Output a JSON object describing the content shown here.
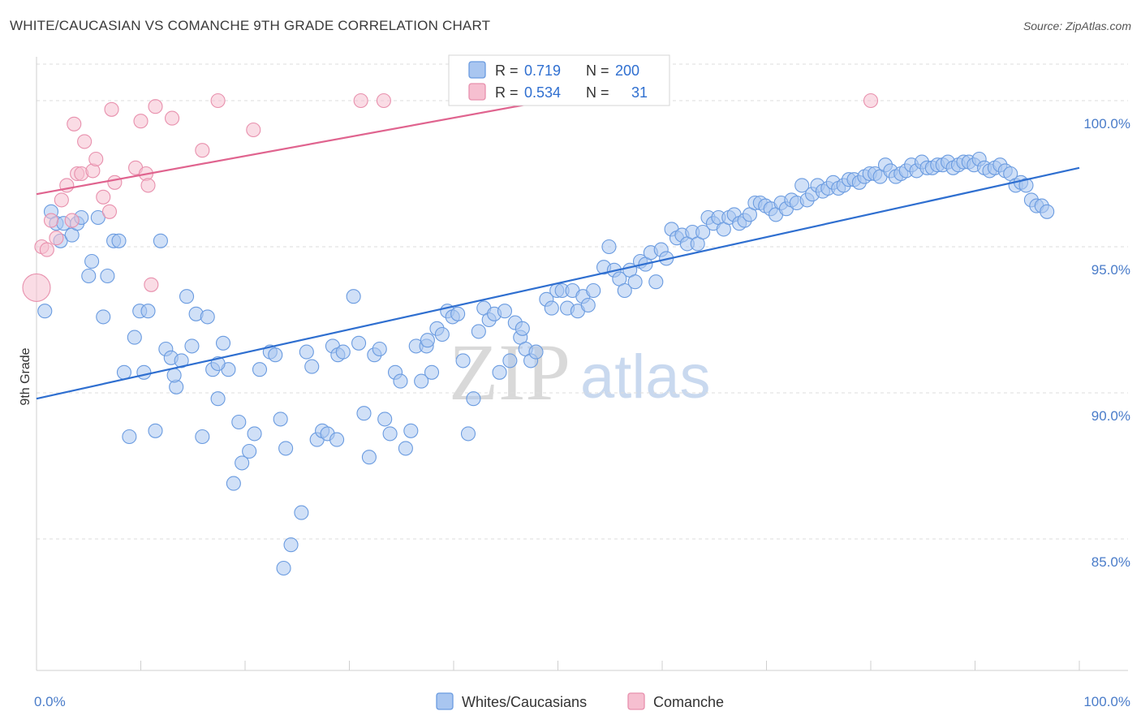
{
  "title": "WHITE/CAUCASIAN VS COMANCHE 9TH GRADE CORRELATION CHART",
  "source": "Source: ZipAtlas.com",
  "watermark": {
    "zip": "ZIP",
    "atlas": "atlas"
  },
  "colors": {
    "blue_fill": "#a9c6f0",
    "blue_stroke": "#6a9be0",
    "blue_line": "#2f6fd0",
    "pink_fill": "#f6bfd0",
    "pink_stroke": "#e890ad",
    "pink_line": "#e0648f",
    "value_text": "#2f6fd0",
    "grid": "#dddddd"
  },
  "legend": {
    "row1": {
      "r_label": "R =",
      "r_value": "0.719",
      "n_label": "N =",
      "n_value": "200"
    },
    "row2": {
      "r_label": "R =",
      "r_value": "0.534",
      "n_label": "N =",
      "n_value": "31"
    }
  },
  "bottom_legend": {
    "blue": "Whites/Caucasians",
    "pink": "Comanche"
  },
  "chart_data": {
    "type": "scatter",
    "title": "WHITE/CAUCASIAN VS COMANCHE 9TH GRADE CORRELATION CHART",
    "xlabel": "",
    "ylabel": "9th Grade",
    "xlim": [
      0,
      100
    ],
    "ylim": [
      80.5,
      101.5
    ],
    "x_tick_labels": [
      "0.0%",
      "100.0%"
    ],
    "y_ticks": [
      85,
      90,
      95,
      100
    ],
    "y_tick_labels": [
      "85.0%",
      "90.0%",
      "95.0%",
      "100.0%"
    ],
    "grid": "horizontal dashed",
    "legend_position": "top-center",
    "series": [
      {
        "name": "Whites/Caucasians",
        "color": "#a9c6f0",
        "trend": {
          "x": [
            0,
            100
          ],
          "y": [
            89.8,
            97.7
          ]
        },
        "points": [
          [
            0.8,
            92.8
          ],
          [
            1.4,
            96.2
          ],
          [
            1.9,
            95.8
          ],
          [
            2.3,
            95.2
          ],
          [
            2.6,
            95.8
          ],
          [
            3.4,
            95.4
          ],
          [
            3.9,
            95.8
          ],
          [
            4.3,
            96.0
          ],
          [
            5.0,
            94.0
          ],
          [
            5.3,
            94.5
          ],
          [
            5.9,
            96.0
          ],
          [
            6.4,
            92.6
          ],
          [
            6.8,
            94.0
          ],
          [
            7.4,
            95.2
          ],
          [
            7.9,
            95.2
          ],
          [
            8.4,
            90.7
          ],
          [
            8.9,
            88.5
          ],
          [
            9.4,
            91.9
          ],
          [
            9.9,
            92.8
          ],
          [
            10.3,
            90.7
          ],
          [
            10.7,
            92.8
          ],
          [
            11.4,
            88.7
          ],
          [
            11.9,
            95.2
          ],
          [
            12.4,
            91.5
          ],
          [
            12.9,
            91.2
          ],
          [
            13.4,
            90.2
          ],
          [
            13.9,
            91.1
          ],
          [
            14.4,
            93.3
          ],
          [
            14.9,
            91.6
          ],
          [
            15.3,
            92.7
          ],
          [
            15.9,
            88.5
          ],
          [
            16.4,
            92.6
          ],
          [
            16.9,
            90.8
          ],
          [
            17.4,
            89.8
          ],
          [
            17.9,
            91.7
          ],
          [
            18.4,
            90.8
          ],
          [
            18.9,
            86.9
          ],
          [
            19.4,
            89.0
          ],
          [
            19.7,
            87.6
          ],
          [
            20.4,
            88.0
          ],
          [
            20.9,
            88.6
          ],
          [
            21.4,
            90.8
          ],
          [
            22.4,
            91.4
          ],
          [
            22.9,
            91.3
          ],
          [
            23.4,
            89.1
          ],
          [
            23.9,
            88.1
          ],
          [
            24.4,
            84.8
          ],
          [
            25.4,
            85.9
          ],
          [
            25.9,
            91.4
          ],
          [
            26.4,
            90.9
          ],
          [
            26.9,
            88.4
          ],
          [
            27.4,
            88.7
          ],
          [
            27.9,
            88.6
          ],
          [
            28.4,
            91.6
          ],
          [
            28.9,
            91.3
          ],
          [
            29.4,
            91.4
          ],
          [
            30.4,
            93.3
          ],
          [
            30.9,
            91.7
          ],
          [
            31.4,
            89.3
          ],
          [
            31.9,
            87.8
          ],
          [
            32.4,
            91.3
          ],
          [
            32.9,
            91.5
          ],
          [
            33.4,
            89.1
          ],
          [
            33.9,
            88.6
          ],
          [
            34.4,
            90.7
          ],
          [
            34.9,
            90.4
          ],
          [
            35.4,
            88.1
          ],
          [
            35.9,
            88.7
          ],
          [
            36.4,
            91.6
          ],
          [
            36.9,
            90.4
          ],
          [
            37.4,
            91.6
          ],
          [
            37.9,
            90.7
          ],
          [
            38.4,
            92.2
          ],
          [
            38.9,
            92.0
          ],
          [
            39.4,
            92.8
          ],
          [
            39.9,
            92.6
          ],
          [
            40.4,
            92.7
          ],
          [
            40.9,
            91.1
          ],
          [
            41.4,
            88.6
          ],
          [
            41.9,
            89.8
          ],
          [
            42.4,
            92.1
          ],
          [
            42.9,
            92.9
          ],
          [
            43.4,
            92.5
          ],
          [
            43.9,
            92.7
          ],
          [
            44.4,
            90.7
          ],
          [
            44.9,
            92.8
          ],
          [
            45.4,
            91.1
          ],
          [
            45.9,
            92.4
          ],
          [
            46.4,
            91.9
          ],
          [
            46.9,
            91.5
          ],
          [
            47.4,
            91.1
          ],
          [
            47.9,
            91.4
          ],
          [
            48.9,
            93.2
          ],
          [
            49.4,
            92.9
          ],
          [
            49.9,
            93.5
          ],
          [
            50.4,
            93.5
          ],
          [
            50.9,
            92.9
          ],
          [
            51.4,
            93.5
          ],
          [
            51.9,
            92.8
          ],
          [
            52.4,
            93.3
          ],
          [
            52.9,
            93.0
          ],
          [
            53.4,
            93.5
          ],
          [
            54.4,
            94.3
          ],
          [
            54.9,
            95.0
          ],
          [
            55.4,
            94.2
          ],
          [
            55.9,
            93.9
          ],
          [
            56.4,
            93.5
          ],
          [
            56.9,
            94.2
          ],
          [
            57.4,
            93.8
          ],
          [
            57.9,
            94.5
          ],
          [
            58.4,
            94.4
          ],
          [
            58.9,
            94.8
          ],
          [
            59.4,
            93.8
          ],
          [
            59.9,
            94.9
          ],
          [
            60.4,
            94.6
          ],
          [
            60.9,
            95.6
          ],
          [
            61.4,
            95.3
          ],
          [
            61.9,
            95.4
          ],
          [
            62.4,
            95.1
          ],
          [
            62.9,
            95.5
          ],
          [
            63.4,
            95.1
          ],
          [
            63.9,
            95.5
          ],
          [
            64.4,
            96.0
          ],
          [
            64.9,
            95.8
          ],
          [
            65.4,
            96.0
          ],
          [
            65.9,
            95.6
          ],
          [
            66.4,
            96.0
          ],
          [
            66.9,
            96.1
          ],
          [
            67.4,
            95.8
          ],
          [
            67.9,
            95.9
          ],
          [
            68.4,
            96.1
          ],
          [
            68.9,
            96.5
          ],
          [
            69.4,
            96.5
          ],
          [
            69.9,
            96.4
          ],
          [
            70.4,
            96.3
          ],
          [
            70.9,
            96.1
          ],
          [
            71.4,
            96.5
          ],
          [
            71.9,
            96.3
          ],
          [
            72.4,
            96.6
          ],
          [
            72.9,
            96.5
          ],
          [
            73.4,
            97.1
          ],
          [
            73.9,
            96.6
          ],
          [
            74.4,
            96.8
          ],
          [
            74.9,
            97.1
          ],
          [
            75.4,
            96.9
          ],
          [
            75.9,
            97.0
          ],
          [
            76.4,
            97.2
          ],
          [
            76.9,
            97.0
          ],
          [
            77.4,
            97.1
          ],
          [
            77.9,
            97.3
          ],
          [
            78.4,
            97.3
          ],
          [
            78.9,
            97.2
          ],
          [
            79.4,
            97.4
          ],
          [
            79.9,
            97.5
          ],
          [
            80.4,
            97.5
          ],
          [
            80.9,
            97.4
          ],
          [
            81.4,
            97.8
          ],
          [
            81.9,
            97.6
          ],
          [
            82.4,
            97.4
          ],
          [
            82.9,
            97.5
          ],
          [
            83.4,
            97.6
          ],
          [
            83.9,
            97.8
          ],
          [
            84.4,
            97.6
          ],
          [
            84.9,
            97.9
          ],
          [
            85.4,
            97.7
          ],
          [
            85.9,
            97.7
          ],
          [
            86.4,
            97.8
          ],
          [
            86.9,
            97.8
          ],
          [
            87.4,
            97.9
          ],
          [
            87.9,
            97.7
          ],
          [
            88.4,
            97.8
          ],
          [
            88.9,
            97.9
          ],
          [
            89.4,
            97.9
          ],
          [
            89.9,
            97.8
          ],
          [
            90.4,
            98.0
          ],
          [
            90.9,
            97.7
          ],
          [
            91.4,
            97.6
          ],
          [
            91.9,
            97.7
          ],
          [
            92.4,
            97.8
          ],
          [
            92.9,
            97.6
          ],
          [
            93.4,
            97.5
          ],
          [
            93.9,
            97.1
          ],
          [
            94.4,
            97.2
          ],
          [
            94.9,
            97.1
          ],
          [
            95.4,
            96.6
          ],
          [
            95.9,
            96.4
          ],
          [
            96.4,
            96.4
          ],
          [
            96.9,
            96.2
          ],
          [
            23.7,
            84.0
          ],
          [
            37.5,
            91.8
          ],
          [
            46.6,
            92.2
          ],
          [
            28.8,
            88.4
          ],
          [
            17.4,
            91.0
          ],
          [
            13.2,
            90.6
          ]
        ]
      },
      {
        "name": "Comanche",
        "color": "#f6bfd0",
        "trend": {
          "x": [
            0,
            47.5
          ],
          "y": [
            96.8,
            99.9
          ]
        },
        "points": [
          [
            0.0,
            93.6
          ],
          [
            0.5,
            95.0
          ],
          [
            1.0,
            94.9
          ],
          [
            1.4,
            95.9
          ],
          [
            1.9,
            95.3
          ],
          [
            2.4,
            96.6
          ],
          [
            2.9,
            97.1
          ],
          [
            3.4,
            95.9
          ],
          [
            3.6,
            99.2
          ],
          [
            3.9,
            97.5
          ],
          [
            4.3,
            97.5
          ],
          [
            4.6,
            98.6
          ],
          [
            5.4,
            97.6
          ],
          [
            5.7,
            98.0
          ],
          [
            6.4,
            96.7
          ],
          [
            7.0,
            96.2
          ],
          [
            7.5,
            97.2
          ],
          [
            7.2,
            99.7
          ],
          [
            9.5,
            97.7
          ],
          [
            10.0,
            99.3
          ],
          [
            10.5,
            97.5
          ],
          [
            10.7,
            97.1
          ],
          [
            11.0,
            93.7
          ],
          [
            11.4,
            99.8
          ],
          [
            13.0,
            99.4
          ],
          [
            15.9,
            98.3
          ],
          [
            17.4,
            100.0
          ],
          [
            20.8,
            99.0
          ],
          [
            31.1,
            100.0
          ],
          [
            33.3,
            100.0
          ],
          [
            80.0,
            100.0
          ]
        ]
      }
    ]
  }
}
